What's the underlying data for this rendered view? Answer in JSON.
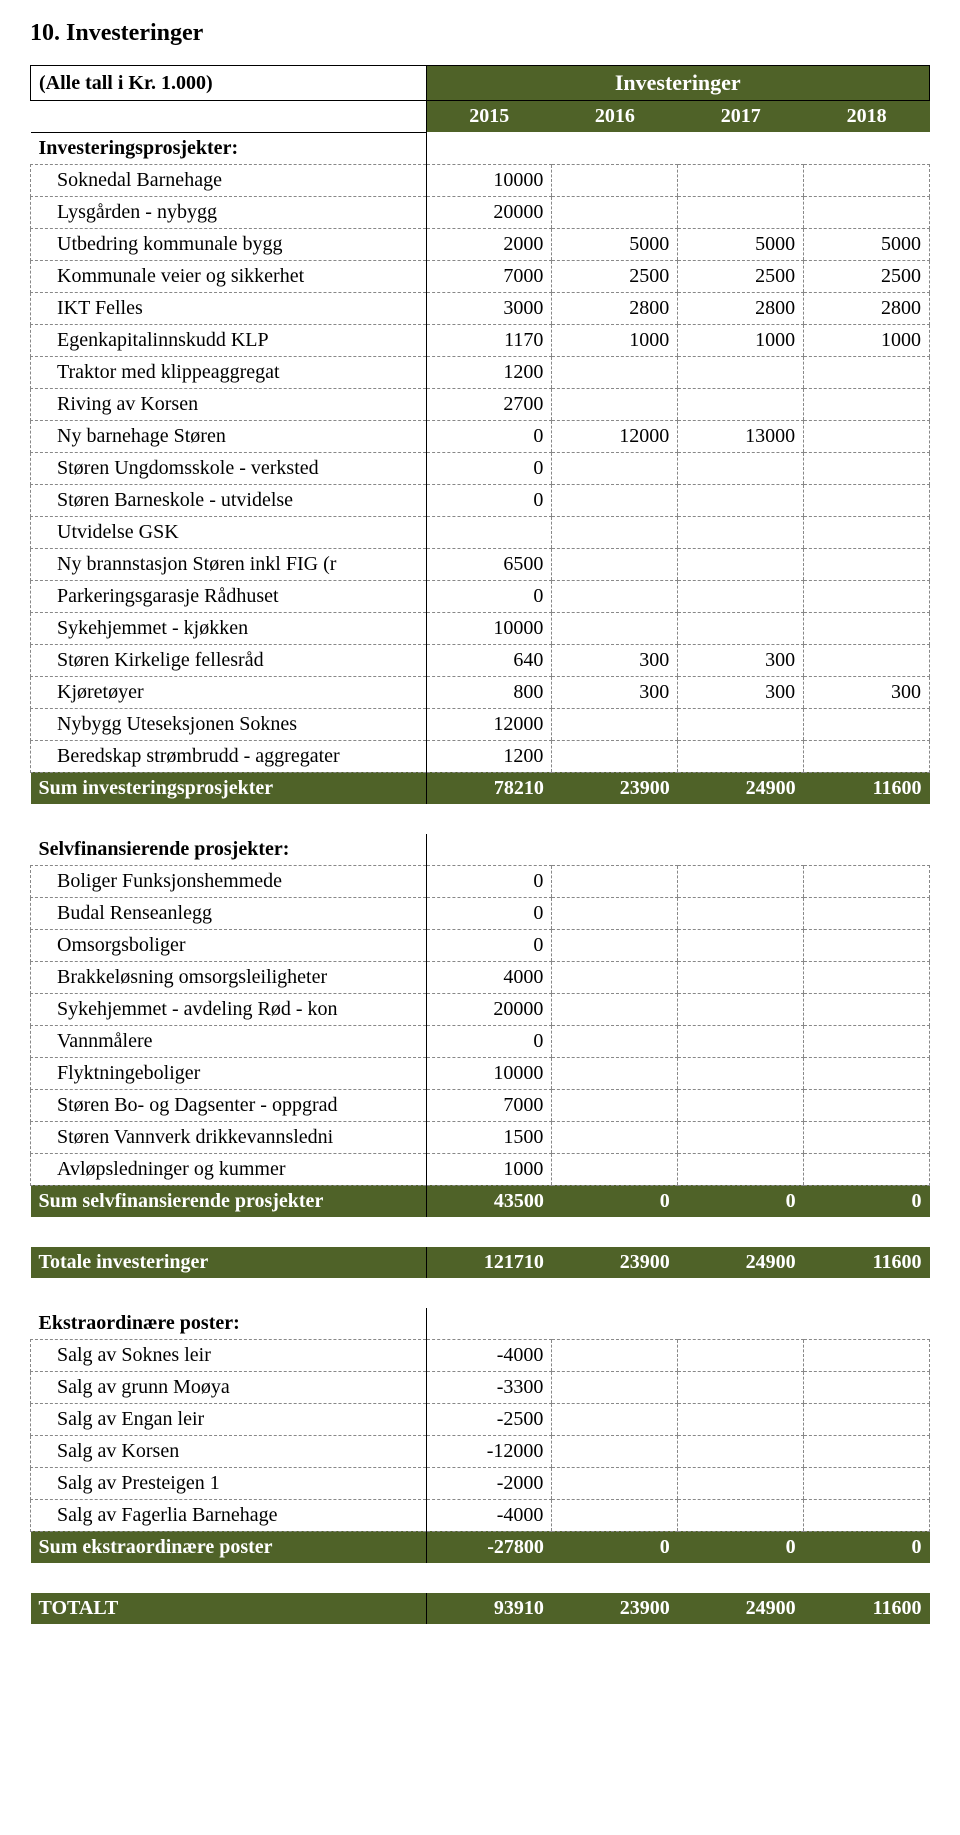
{
  "title": "10. Investeringer",
  "header": {
    "note": "(Alle tall i Kr. 1.000)",
    "banner": "Investeringer",
    "years": [
      "2015",
      "2016",
      "2017",
      "2018"
    ]
  },
  "groups": [
    {
      "title": "Investeringsprosjekter:",
      "rows": [
        {
          "label": "Soknedal Barnehage",
          "cells": [
            "10000",
            "",
            "",
            ""
          ]
        },
        {
          "label": "Lysgården - nybygg",
          "cells": [
            "20000",
            "",
            "",
            ""
          ]
        },
        {
          "label": "Utbedring kommunale bygg",
          "cells": [
            "2000",
            "5000",
            "5000",
            "5000"
          ]
        },
        {
          "label": "Kommunale veier og sikkerhet",
          "cells": [
            "7000",
            "2500",
            "2500",
            "2500"
          ]
        },
        {
          "label": "IKT Felles",
          "cells": [
            "3000",
            "2800",
            "2800",
            "2800"
          ]
        },
        {
          "label": "Egenkapitalinnskudd KLP",
          "cells": [
            "1170",
            "1000",
            "1000",
            "1000"
          ]
        },
        {
          "label": "Traktor med klippeaggregat",
          "cells": [
            "1200",
            "",
            "",
            ""
          ]
        },
        {
          "label": "Riving av Korsen",
          "cells": [
            "2700",
            "",
            "",
            ""
          ]
        },
        {
          "label": "Ny barnehage Støren",
          "cells": [
            "0",
            "12000",
            "13000",
            ""
          ]
        },
        {
          "label": "Støren Ungdomsskole - verksted",
          "cells": [
            "0",
            "",
            "",
            ""
          ]
        },
        {
          "label": "Støren Barneskole - utvidelse",
          "cells": [
            "0",
            "",
            "",
            ""
          ]
        },
        {
          "label": "Utvidelse GSK",
          "cells": [
            "",
            "",
            "",
            ""
          ]
        },
        {
          "label": "Ny brannstasjon Støren inkl FIG (r",
          "cells": [
            "6500",
            "",
            "",
            ""
          ]
        },
        {
          "label": "Parkeringsgarasje Rådhuset",
          "cells": [
            "0",
            "",
            "",
            ""
          ]
        },
        {
          "label": "Sykehjemmet - kjøkken",
          "cells": [
            "10000",
            "",
            "",
            ""
          ]
        },
        {
          "label": "Støren Kirkelige fellesråd",
          "cells": [
            "640",
            "300",
            "300",
            ""
          ]
        },
        {
          "label": "Kjøretøyer",
          "cells": [
            "800",
            "300",
            "300",
            "300"
          ]
        },
        {
          "label": "Nybygg Uteseksjonen Soknes",
          "cells": [
            "12000",
            "",
            "",
            ""
          ]
        },
        {
          "label": "Beredskap strømbrudd - aggregater",
          "cells": [
            "1200",
            "",
            "",
            ""
          ]
        }
      ],
      "sum": {
        "label": "Sum investeringsprosjekter",
        "cells": [
          "78210",
          "23900",
          "24900",
          "11600"
        ]
      }
    },
    {
      "title": "Selvfinansierende prosjekter:",
      "rows": [
        {
          "label": "Boliger Funksjonshemmede",
          "cells": [
            "0",
            "",
            "",
            ""
          ]
        },
        {
          "label": "Budal Renseanlegg",
          "cells": [
            "0",
            "",
            "",
            ""
          ]
        },
        {
          "label": "Omsorgsboliger",
          "cells": [
            "0",
            "",
            "",
            ""
          ]
        },
        {
          "label": "Brakkeløsning omsorgsleiligheter",
          "cells": [
            "4000",
            "",
            "",
            ""
          ]
        },
        {
          "label": "Sykehjemmet - avdeling Rød - kon",
          "cells": [
            "20000",
            "",
            "",
            ""
          ]
        },
        {
          "label": "Vannmålere",
          "cells": [
            "0",
            "",
            "",
            ""
          ]
        },
        {
          "label": "Flyktningeboliger",
          "cells": [
            "10000",
            "",
            "",
            ""
          ]
        },
        {
          "label": "Støren Bo- og Dagsenter - oppgrad",
          "cells": [
            "7000",
            "",
            "",
            ""
          ]
        },
        {
          "label": "Støren Vannverk drikkevannsledni",
          "cells": [
            "1500",
            "",
            "",
            ""
          ]
        },
        {
          "label": "Avløpsledninger og kummer",
          "cells": [
            "1000",
            "",
            "",
            ""
          ]
        }
      ],
      "sum": {
        "label": "Sum selvfinansierende prosjekter",
        "cells": [
          "43500",
          "0",
          "0",
          "0"
        ]
      }
    }
  ],
  "totalInvest": {
    "label": "Totale investeringer",
    "cells": [
      "121710",
      "23900",
      "24900",
      "11600"
    ]
  },
  "extra": {
    "title": "Ekstraordinære poster:",
    "rows": [
      {
        "label": "Salg av Soknes leir",
        "cells": [
          "-4000",
          "",
          "",
          ""
        ]
      },
      {
        "label": "Salg av grunn Moøya",
        "cells": [
          "-3300",
          "",
          "",
          ""
        ]
      },
      {
        "label": "Salg av Engan leir",
        "cells": [
          "-2500",
          "",
          "",
          ""
        ]
      },
      {
        "label": "Salg av Korsen",
        "cells": [
          "-12000",
          "",
          "",
          ""
        ]
      },
      {
        "label": "Salg av Presteigen 1",
        "cells": [
          "-2000",
          "",
          "",
          ""
        ]
      },
      {
        "label": "Salg av Fagerlia Barnehage",
        "cells": [
          "-4000",
          "",
          "",
          ""
        ]
      }
    ],
    "sum": {
      "label": "Sum ekstraordinære poster",
      "cells": [
        "-27800",
        "0",
        "0",
        "0"
      ]
    }
  },
  "grandTotal": {
    "label": "TOTALT",
    "cells": [
      "93910",
      "23900",
      "24900",
      "11600"
    ]
  },
  "style": {
    "green": "#4f6228",
    "dash": "#888888"
  }
}
